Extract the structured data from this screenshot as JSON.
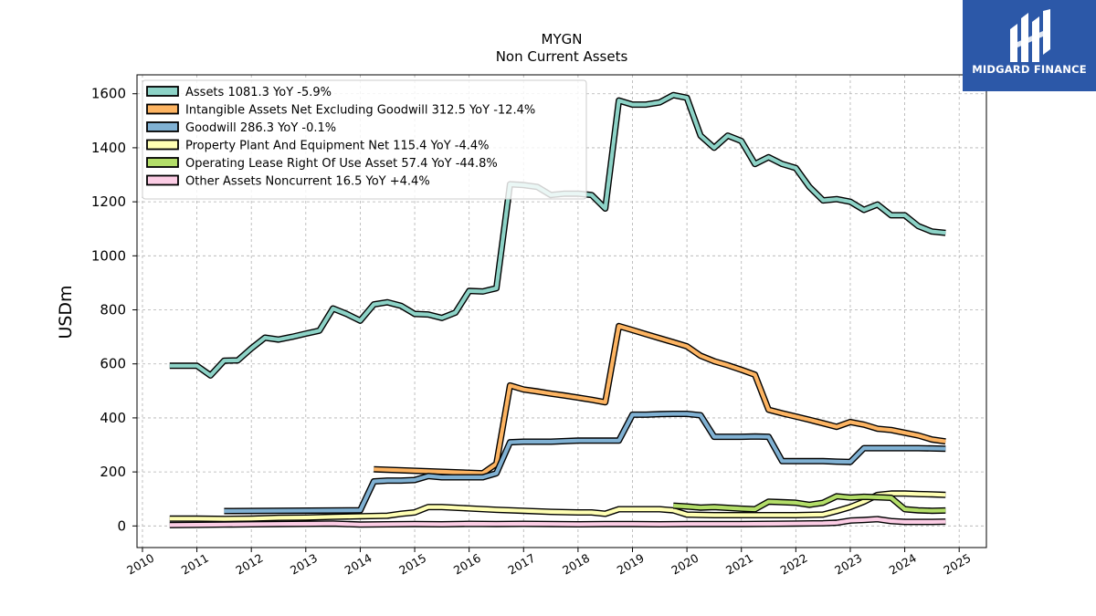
{
  "brand": {
    "name": "MIDGARD FINANCE",
    "colors": {
      "tile": "#2c58a8",
      "text": "#ffffff"
    }
  },
  "chart_data": {
    "type": "line",
    "title": "MYGN",
    "subtitle": "Non Current  Assets",
    "xlabel": "",
    "ylabel": "USDm",
    "xlim": [
      2009.9,
      2025.5
    ],
    "ylim": [
      -80,
      1670
    ],
    "yticks": [
      0,
      200,
      400,
      600,
      800,
      1000,
      1200,
      1400,
      1600
    ],
    "xticks": [
      "2010",
      "2011",
      "2012",
      "2013",
      "2014",
      "2015",
      "2016",
      "2017",
      "2018",
      "2019",
      "2020",
      "2021",
      "2022",
      "2023",
      "2024",
      "2025"
    ],
    "grid": true,
    "legend": "upper-left",
    "series": [
      {
        "name": "Assets  1081.3 YoY -5.9%",
        "color": "#8dd3c7",
        "x": [
          2010.5,
          2010.75,
          2011.0,
          2011.25,
          2011.5,
          2011.75,
          2012.0,
          2012.25,
          2012.5,
          2012.75,
          2013.0,
          2013.25,
          2013.5,
          2013.75,
          2014.0,
          2014.25,
          2014.5,
          2014.75,
          2015.0,
          2015.25,
          2015.5,
          2015.75,
          2016.0,
          2016.25,
          2016.5,
          2016.75,
          2017.0,
          2017.25,
          2017.5,
          2017.75,
          2018.0,
          2018.25,
          2018.5,
          2018.75,
          2019.0,
          2019.25,
          2019.5,
          2019.75,
          2020.0,
          2020.25,
          2020.5,
          2020.75,
          2021.0,
          2021.25,
          2021.5,
          2021.75,
          2022.0,
          2022.25,
          2022.5,
          2022.75,
          2023.0,
          2023.25,
          2023.5,
          2023.75,
          2024.0,
          2024.25,
          2024.5,
          2024.75
        ],
        "values": [
          593,
          593,
          593,
          557,
          612,
          613,
          657,
          697,
          690,
          700,
          712,
          723,
          805,
          785,
          760,
          820,
          828,
          815,
          785,
          783,
          770,
          790,
          870,
          868,
          880,
          1265,
          1262,
          1255,
          1225,
          1230,
          1230,
          1225,
          1175,
          1575,
          1560,
          1560,
          1568,
          1595,
          1585,
          1445,
          1400,
          1445,
          1425,
          1340,
          1365,
          1340,
          1325,
          1255,
          1205,
          1210,
          1200,
          1170,
          1190,
          1150,
          1150,
          1110,
          1090,
          1085
        ]
      },
      {
        "name": "Intangible Assets Net Excluding Goodwill  312.5 YoY -12.4%",
        "color": "#fdb462",
        "x": [
          2014.25,
          2016.25,
          2016.5,
          2016.75,
          2017.0,
          2017.25,
          2017.5,
          2017.75,
          2018.0,
          2018.25,
          2018.5,
          2018.75,
          2019.0,
          2019.25,
          2019.5,
          2019.75,
          2020.0,
          2020.25,
          2020.5,
          2020.75,
          2021.0,
          2021.25,
          2021.5,
          2021.75,
          2022.0,
          2022.25,
          2022.5,
          2022.75,
          2023.0,
          2023.25,
          2023.5,
          2023.75,
          2024.0,
          2024.25,
          2024.5,
          2024.75
        ],
        "values": [
          210,
          195,
          230,
          520,
          505,
          498,
          490,
          483,
          475,
          467,
          458,
          740,
          725,
          710,
          695,
          680,
          665,
          630,
          610,
          595,
          578,
          560,
          430,
          417,
          405,
          393,
          380,
          367,
          385,
          375,
          360,
          355,
          345,
          335,
          320,
          313
        ]
      },
      {
        "name": "Goodwill  286.3 YoY -0.1%",
        "color": "#80b1d3",
        "x": [
          2011.5,
          2014.0,
          2014.25,
          2014.5,
          2014.75,
          2015.0,
          2015.25,
          2015.5,
          2015.75,
          2016.0,
          2016.25,
          2016.5,
          2016.75,
          2017.0,
          2017.25,
          2017.5,
          2017.75,
          2018.0,
          2018.25,
          2018.5,
          2018.75,
          2019.0,
          2019.25,
          2019.5,
          2019.75,
          2020.0,
          2020.25,
          2020.5,
          2020.75,
          2021.0,
          2021.25,
          2021.5,
          2021.75,
          2022.0,
          2022.25,
          2022.5,
          2022.75,
          2023.0,
          2023.25,
          2023.5,
          2023.75,
          2024.0,
          2024.25,
          2024.5,
          2024.75
        ],
        "values": [
          55,
          58,
          165,
          168,
          168,
          170,
          185,
          180,
          180,
          180,
          180,
          195,
          310,
          312,
          312,
          312,
          314,
          316,
          316,
          316,
          316,
          412,
          412,
          414,
          415,
          415,
          410,
          330,
          330,
          330,
          331,
          330,
          240,
          240,
          240,
          240,
          238,
          237,
          288,
          288,
          288,
          288,
          288,
          287,
          286
        ]
      },
      {
        "name": "Property Plant And Equipment Net  115.4 YoY -4.4%",
        "color": "#ffffb3",
        "x": [
          2010.5,
          2011.0,
          2011.5,
          2012.0,
          2012.5,
          2013.0,
          2013.5,
          2014.0,
          2014.5,
          2014.75,
          2015.0,
          2015.25,
          2015.5,
          2016.0,
          2016.5,
          2017.0,
          2017.5,
          2018.0,
          2018.25,
          2018.5,
          2018.75,
          2019.0,
          2019.5,
          2019.75,
          2020.0,
          2020.5,
          2021.0,
          2021.5,
          2022.0,
          2022.5,
          2022.75,
          2023.0,
          2023.25,
          2023.5,
          2023.75,
          2024.0,
          2024.25,
          2024.5,
          2024.75
        ],
        "values": [
          27,
          27,
          26,
          27,
          30,
          31,
          34,
          36,
          38,
          45,
          50,
          70,
          70,
          65,
          60,
          56,
          52,
          50,
          50,
          45,
          62,
          62,
          62,
          58,
          42,
          40,
          40,
          40,
          40,
          42,
          55,
          70,
          90,
          115,
          120,
          120,
          118,
          117,
          115
        ]
      },
      {
        "name": "Operating Lease Right Of Use Asset  57.4 YoY -44.8%",
        "color": "#b3de69",
        "x": [
          2019.75,
          2020.0,
          2020.25,
          2020.5,
          2020.75,
          2021.0,
          2021.25,
          2021.5,
          2021.75,
          2022.0,
          2022.25,
          2022.5,
          2022.75,
          2023.0,
          2023.25,
          2023.5,
          2023.75,
          2024.0,
          2024.25,
          2024.5,
          2024.75
        ],
        "values": [
          75,
          72,
          68,
          70,
          67,
          64,
          62,
          90,
          88,
          86,
          78,
          86,
          110,
          105,
          108,
          106,
          104,
          62,
          58,
          56,
          57
        ]
      },
      {
        "name": "Other Assets Noncurrent  16.5 YoY +4.4%",
        "color": "#fccde5",
        "x": [
          2010.5,
          2011.0,
          2011.5,
          2012.0,
          2012.5,
          2013.0,
          2013.5,
          2014.0,
          2014.5,
          2015.0,
          2015.5,
          2016.0,
          2016.5,
          2017.0,
          2017.5,
          2018.0,
          2018.5,
          2019.0,
          2019.5,
          2020.0,
          2020.5,
          2021.0,
          2021.5,
          2022.0,
          2022.5,
          2022.75,
          2023.0,
          2023.25,
          2023.5,
          2023.75,
          2024.0,
          2024.25,
          2024.5,
          2024.75
        ],
        "values": [
          3,
          4,
          5,
          6,
          7,
          8,
          9,
          5,
          6,
          7,
          6,
          8,
          7,
          8,
          7,
          6,
          7,
          7,
          6,
          7,
          7,
          7,
          8,
          9,
          10,
          12,
          20,
          22,
          25,
          18,
          15,
          15,
          15,
          16
        ]
      }
    ]
  }
}
